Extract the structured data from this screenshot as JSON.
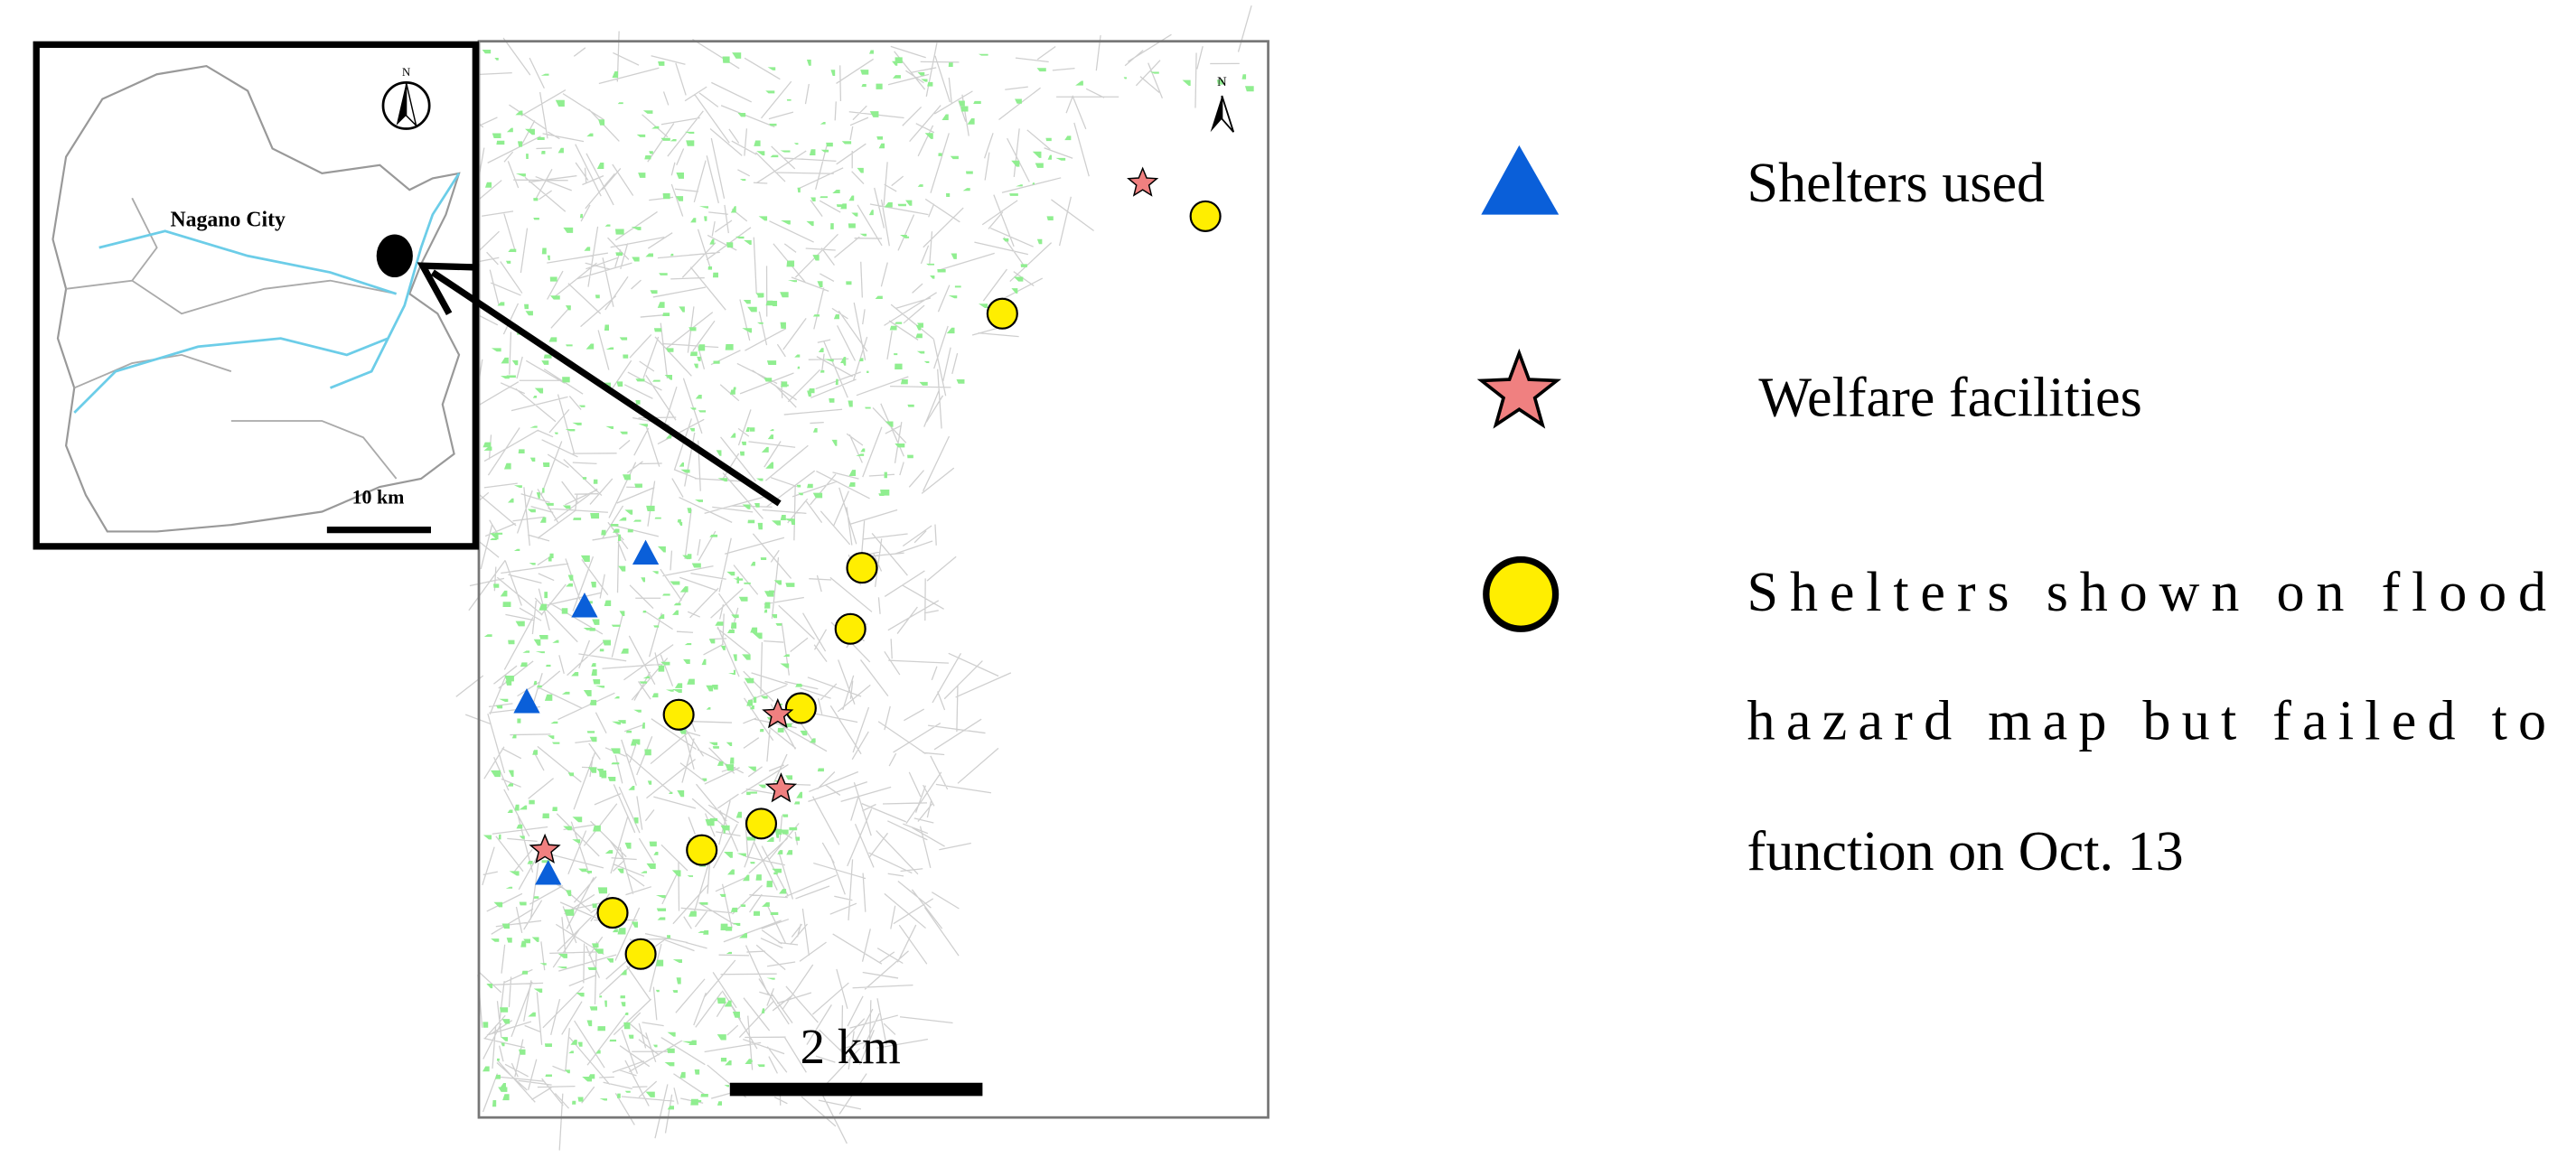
{
  "inset": {
    "label": "Nagano City",
    "scale": "10 km",
    "north": "N"
  },
  "map": {
    "scale": "2 km",
    "north": "N"
  },
  "legend": {
    "shelters_used": "Shelters used",
    "welfare": "Welfare facilities",
    "failed_lines": [
      "Shelters shown on flood",
      "hazard map but failed to",
      "function on Oct. 13"
    ]
  }
}
